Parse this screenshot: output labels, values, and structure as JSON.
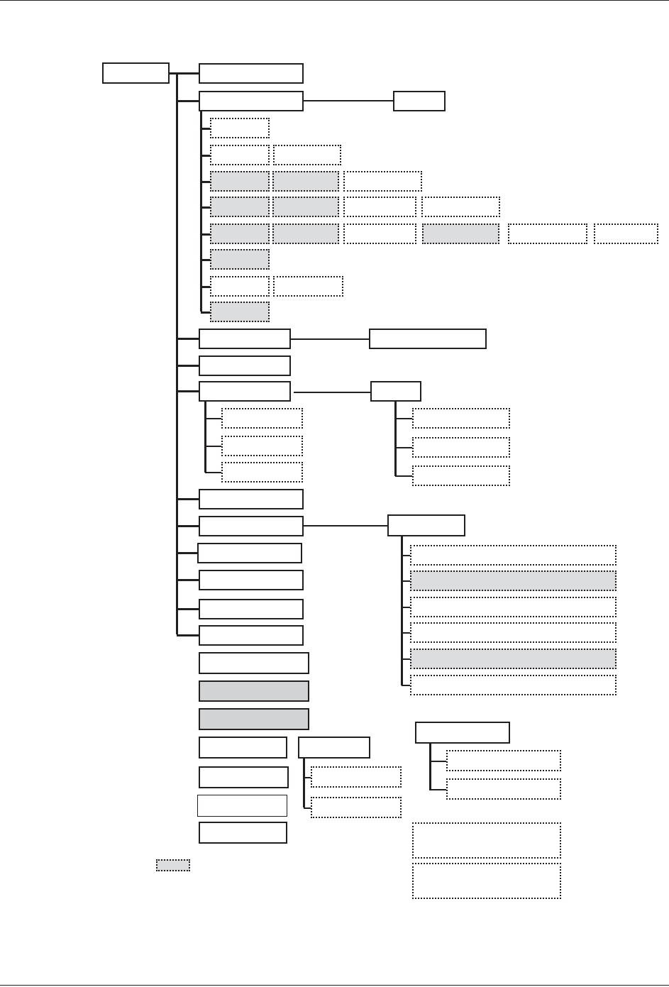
{
  "diagram": {
    "type": "hierarchy-tree",
    "labels": "none visible",
    "colors": {
      "line": "#231f20",
      "shaded_box": "#dcdddf",
      "box_fill": "#ffffff"
    }
  }
}
